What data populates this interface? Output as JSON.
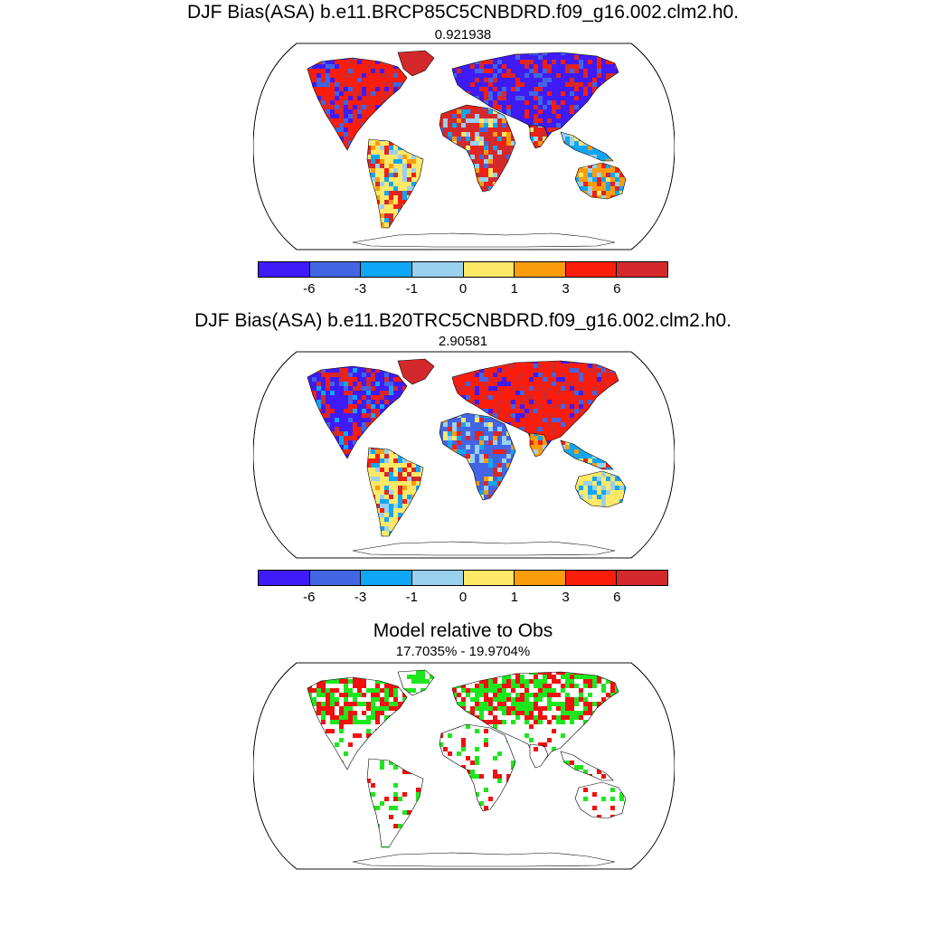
{
  "colorbar": {
    "colors": [
      "#3f1bf7",
      "#4266e3",
      "#10a6f6",
      "#99d0ed",
      "#fde868",
      "#fb9c0c",
      "#fb1d0c",
      "#d3292c"
    ],
    "labels": [
      "-6",
      "-3",
      "-1",
      "0",
      "1",
      "3",
      "6"
    ]
  },
  "panels": [
    {
      "title": "DJF Bias(ASA) b.e11.BRCP85C5CNBDRD.f09_g16.002.clm2.h0.",
      "subtitle": "0.921938",
      "icon": "world-bias-map"
    },
    {
      "title": "DJF Bias(ASA) b.e11.B20TRC5CNBDRD.f09_g16.002.clm2.h0.",
      "subtitle": "2.90581",
      "icon": "world-bias-map"
    },
    {
      "title": "Model relative to Obs",
      "subtitle": "17.7035% - 19.9704%",
      "icon": "world-significance-map",
      "colors": {
        "green": "#1ee61e",
        "red": "#f01010"
      }
    }
  ]
}
